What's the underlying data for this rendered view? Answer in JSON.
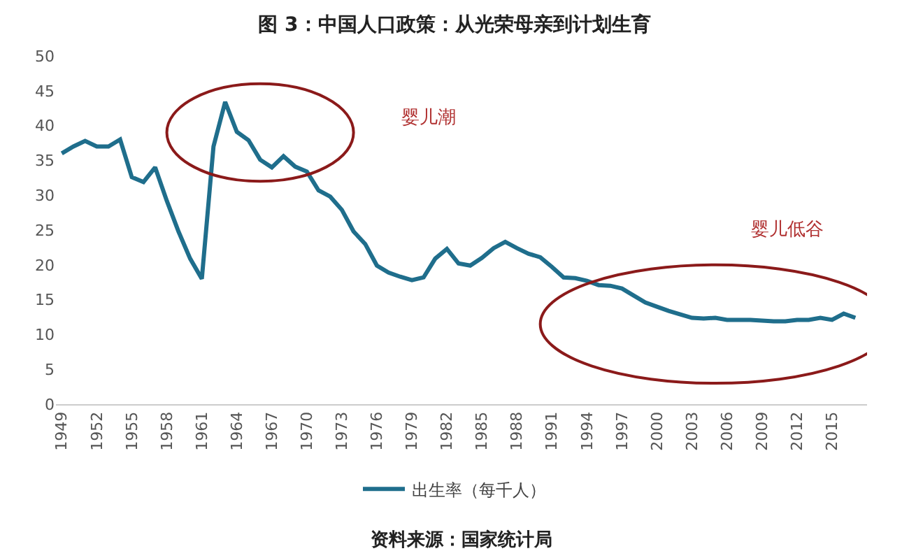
{
  "chart_data": {
    "type": "line",
    "title": "图 3：中国人口政策：从光荣母亲到计划生育",
    "x": [
      1949,
      1950,
      1951,
      1952,
      1953,
      1954,
      1955,
      1956,
      1957,
      1958,
      1959,
      1960,
      1961,
      1962,
      1963,
      1964,
      1965,
      1966,
      1967,
      1968,
      1969,
      1970,
      1971,
      1972,
      1973,
      1974,
      1975,
      1976,
      1977,
      1978,
      1979,
      1980,
      1981,
      1982,
      1983,
      1984,
      1985,
      1986,
      1987,
      1988,
      1989,
      1990,
      1991,
      1992,
      1993,
      1994,
      1995,
      1996,
      1997,
      1998,
      1999,
      2000,
      2001,
      2002,
      2003,
      2004,
      2005,
      2006,
      2007,
      2008,
      2009,
      2010,
      2011,
      2012,
      2013,
      2014,
      2015,
      2016,
      2017
    ],
    "series": [
      {
        "name": "出生率（每千人）",
        "color": "#1f6e8c",
        "values": [
          36.0,
          37.0,
          37.8,
          37.0,
          37.0,
          38.0,
          32.6,
          31.9,
          34.0,
          29.2,
          24.8,
          20.9,
          18.0,
          37.0,
          43.4,
          39.1,
          37.9,
          35.1,
          34.0,
          35.6,
          34.1,
          33.4,
          30.7,
          29.8,
          27.9,
          24.8,
          23.0,
          19.9,
          18.9,
          18.3,
          17.8,
          18.2,
          20.9,
          22.3,
          20.2,
          19.9,
          21.0,
          22.4,
          23.3,
          22.4,
          21.6,
          21.1,
          19.7,
          18.2,
          18.1,
          17.7,
          17.1,
          17.0,
          16.6,
          15.6,
          14.6,
          14.0,
          13.4,
          12.9,
          12.4,
          12.3,
          12.4,
          12.1,
          12.1,
          12.1,
          12.0,
          11.9,
          11.9,
          12.1,
          12.1,
          12.4,
          12.1,
          13.0,
          12.4
        ]
      }
    ],
    "xlim": [
      1948.5,
      2018
    ],
    "xticks": [
      1949,
      1952,
      1955,
      1958,
      1961,
      1964,
      1967,
      1970,
      1973,
      1976,
      1979,
      1982,
      1985,
      1988,
      1991,
      1994,
      1997,
      2000,
      2003,
      2006,
      2009,
      2012,
      2015
    ],
    "ylim": [
      0,
      50
    ],
    "yticks": [
      0,
      5,
      10,
      15,
      20,
      25,
      30,
      35,
      40,
      45,
      50
    ],
    "legend": "bottom",
    "marker": "none",
    "line_style": "solid",
    "annotations": [
      "婴儿潮",
      "婴儿低谷",
      "资料来源：国家统计局"
    ]
  }
}
